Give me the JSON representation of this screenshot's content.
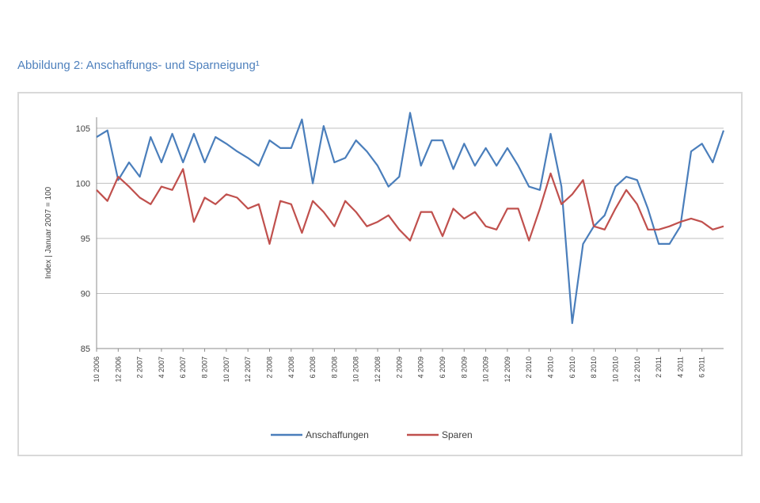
{
  "figure": {
    "title": "Abbildung 2: Anschaffungs- und Sparneigung¹"
  },
  "chart_data": {
    "type": "line",
    "title": "Abbildung 2: Anschaffungs- und Sparneigung¹",
    "ylabel": "Index | Januar 2007 = 100",
    "xlabel": "",
    "ylim": [
      85,
      106
    ],
    "y_ticks": [
      85,
      90,
      95,
      100,
      105
    ],
    "grid": true,
    "legend_position": "bottom",
    "x_tick_labels": [
      "10 2006",
      "12 2006",
      "2 2007",
      "4 2007",
      "6 2007",
      "8 2007",
      "10 2007",
      "12 2007",
      "2 2008",
      "4 2008",
      "6 2008",
      "8 2008",
      "10 2008",
      "12 2008",
      "2 2009",
      "4 2009",
      "6 2009",
      "8 2009",
      "10 2009",
      "12 2009",
      "2 2010",
      "4 2010",
      "6 2010",
      "8 2010",
      "10 2010",
      "12 2010",
      "2 2011",
      "4 2011",
      "6 2011"
    ],
    "series": [
      {
        "name": "Anschaffungen",
        "color": "#4a7ebb",
        "values": [
          104.2,
          104.8,
          100.3,
          101.9,
          100.6,
          104.2,
          101.9,
          104.5,
          101.9,
          104.5,
          101.9,
          104.2,
          103.6,
          102.9,
          102.3,
          101.6,
          103.9,
          103.2,
          103.2,
          105.8,
          100.0,
          105.2,
          101.9,
          102.3,
          103.9,
          102.9,
          101.6,
          99.7,
          100.6,
          106.4,
          101.6,
          103.9,
          103.9,
          101.3,
          103.6,
          101.6,
          103.2,
          101.6,
          103.2,
          101.6,
          99.7,
          99.4,
          104.5,
          99.7,
          87.3,
          94.5,
          96.1,
          97.1,
          99.7,
          100.6,
          100.3,
          97.7,
          94.5,
          94.5,
          96.1,
          102.9,
          103.6,
          101.9,
          104.8
        ]
      },
      {
        "name": "Sparen",
        "color": "#c0504d",
        "values": [
          99.4,
          98.4,
          100.6,
          99.7,
          98.7,
          98.1,
          99.7,
          99.4,
          101.3,
          96.5,
          98.7,
          98.1,
          99.0,
          98.7,
          97.7,
          98.1,
          94.5,
          98.4,
          98.1,
          95.5,
          98.4,
          97.4,
          96.1,
          98.4,
          97.4,
          96.1,
          96.5,
          97.1,
          95.8,
          94.8,
          97.4,
          97.4,
          95.2,
          97.7,
          96.8,
          97.4,
          96.1,
          95.8,
          97.7,
          97.7,
          94.8,
          97.7,
          100.9,
          98.1,
          99.0,
          100.3,
          96.1,
          95.8,
          97.7,
          99.4,
          98.1,
          95.8,
          95.8,
          96.1,
          96.5,
          96.8,
          96.5,
          95.8,
          96.1
        ]
      }
    ]
  },
  "legend": {
    "items": [
      "Anschaffungen",
      "Sparen"
    ]
  }
}
